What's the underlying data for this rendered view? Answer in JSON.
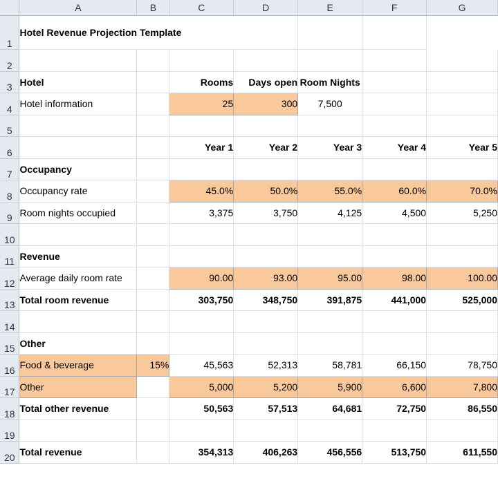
{
  "columns": [
    "A",
    "B",
    "C",
    "D",
    "E",
    "F",
    "G"
  ],
  "rows": [
    "1",
    "2",
    "3",
    "4",
    "5",
    "6",
    "7",
    "8",
    "9",
    "10",
    "11",
    "12",
    "13",
    "14",
    "15",
    "16",
    "17",
    "18",
    "19",
    "20"
  ],
  "title": "Hotel Revenue Projection Template",
  "hotel": {
    "label": "Hotel",
    "headers": [
      "Rooms",
      "Days open",
      "Room Nights"
    ],
    "info_label": "Hotel information",
    "rooms": "25",
    "days_open": "300",
    "room_nights": "7,500"
  },
  "years": [
    "Year 1",
    "Year 2",
    "Year 3",
    "Year 4",
    "Year 5"
  ],
  "occupancy": {
    "label": "Occupancy",
    "rate_label": "Occupancy rate",
    "rates": [
      "45.0%",
      "50.0%",
      "55.0%",
      "60.0%",
      "70.0%"
    ],
    "nights_label": "Room nights occupied",
    "nights": [
      "3,375",
      "3,750",
      "4,125",
      "4,500",
      "5,250"
    ]
  },
  "revenue": {
    "label": "Revenue",
    "adr_label": "Average daily room rate",
    "adr": [
      "90.00",
      "93.00",
      "95.00",
      "98.00",
      "100.00"
    ],
    "total_label": "Total room revenue",
    "total": [
      "303,750",
      "348,750",
      "391,875",
      "441,000",
      "525,000"
    ]
  },
  "other": {
    "label": "Other",
    "fb_label": "Food & beverage",
    "fb_pct": "15%",
    "fb": [
      "45,563",
      "52,313",
      "58,781",
      "66,150",
      "78,750"
    ],
    "other_label": "Other",
    "other_vals": [
      "5,000",
      "5,200",
      "5,900",
      "6,600",
      "7,800"
    ],
    "total_label": "Total other revenue",
    "total": [
      "50,563",
      "57,513",
      "64,681",
      "72,750",
      "86,550"
    ]
  },
  "total_revenue": {
    "label": "Total revenue",
    "values": [
      "354,313",
      "406,263",
      "456,556",
      "513,750",
      "611,550"
    ]
  },
  "colors": {
    "input_fill": "#f9c89b",
    "header_fill": "#e5e9f0",
    "grid": "#dadfe6"
  }
}
